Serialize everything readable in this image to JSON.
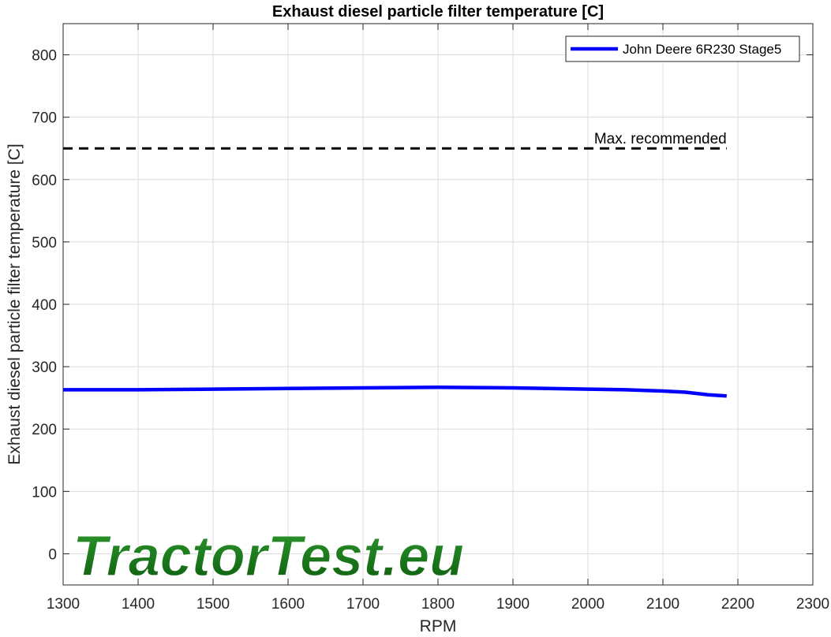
{
  "chart_data": {
    "type": "line",
    "title": "Exhaust diesel particle filter temperature [C]",
    "xlabel": "RPM",
    "ylabel": "Exhaust diesel particle filter temperature [C]",
    "xlim": [
      1300,
      2300
    ],
    "ylim": [
      -50,
      850
    ],
    "xticks": [
      1300,
      1400,
      1500,
      1600,
      1700,
      1800,
      1900,
      2000,
      2100,
      2200,
      2300
    ],
    "yticks": [
      0,
      100,
      200,
      300,
      400,
      500,
      600,
      700,
      800
    ],
    "grid": true,
    "legend_position": "top-right",
    "series": [
      {
        "name": "John Deere 6R230 Stage5",
        "color": "#0000ff",
        "x": [
          1300,
          1400,
          1500,
          1600,
          1700,
          1800,
          1900,
          2000,
          2050,
          2100,
          2130,
          2160,
          2185
        ],
        "y": [
          263,
          263,
          264,
          265,
          266,
          267,
          266,
          264,
          263,
          261,
          259,
          255,
          253
        ]
      }
    ],
    "reference_lines": [
      {
        "label": "Max. recommended",
        "y": 650,
        "x_start": 1300,
        "x_end": 2185,
        "color": "#000000",
        "style": "dashed"
      }
    ],
    "watermark": "TractorTest.eu"
  }
}
